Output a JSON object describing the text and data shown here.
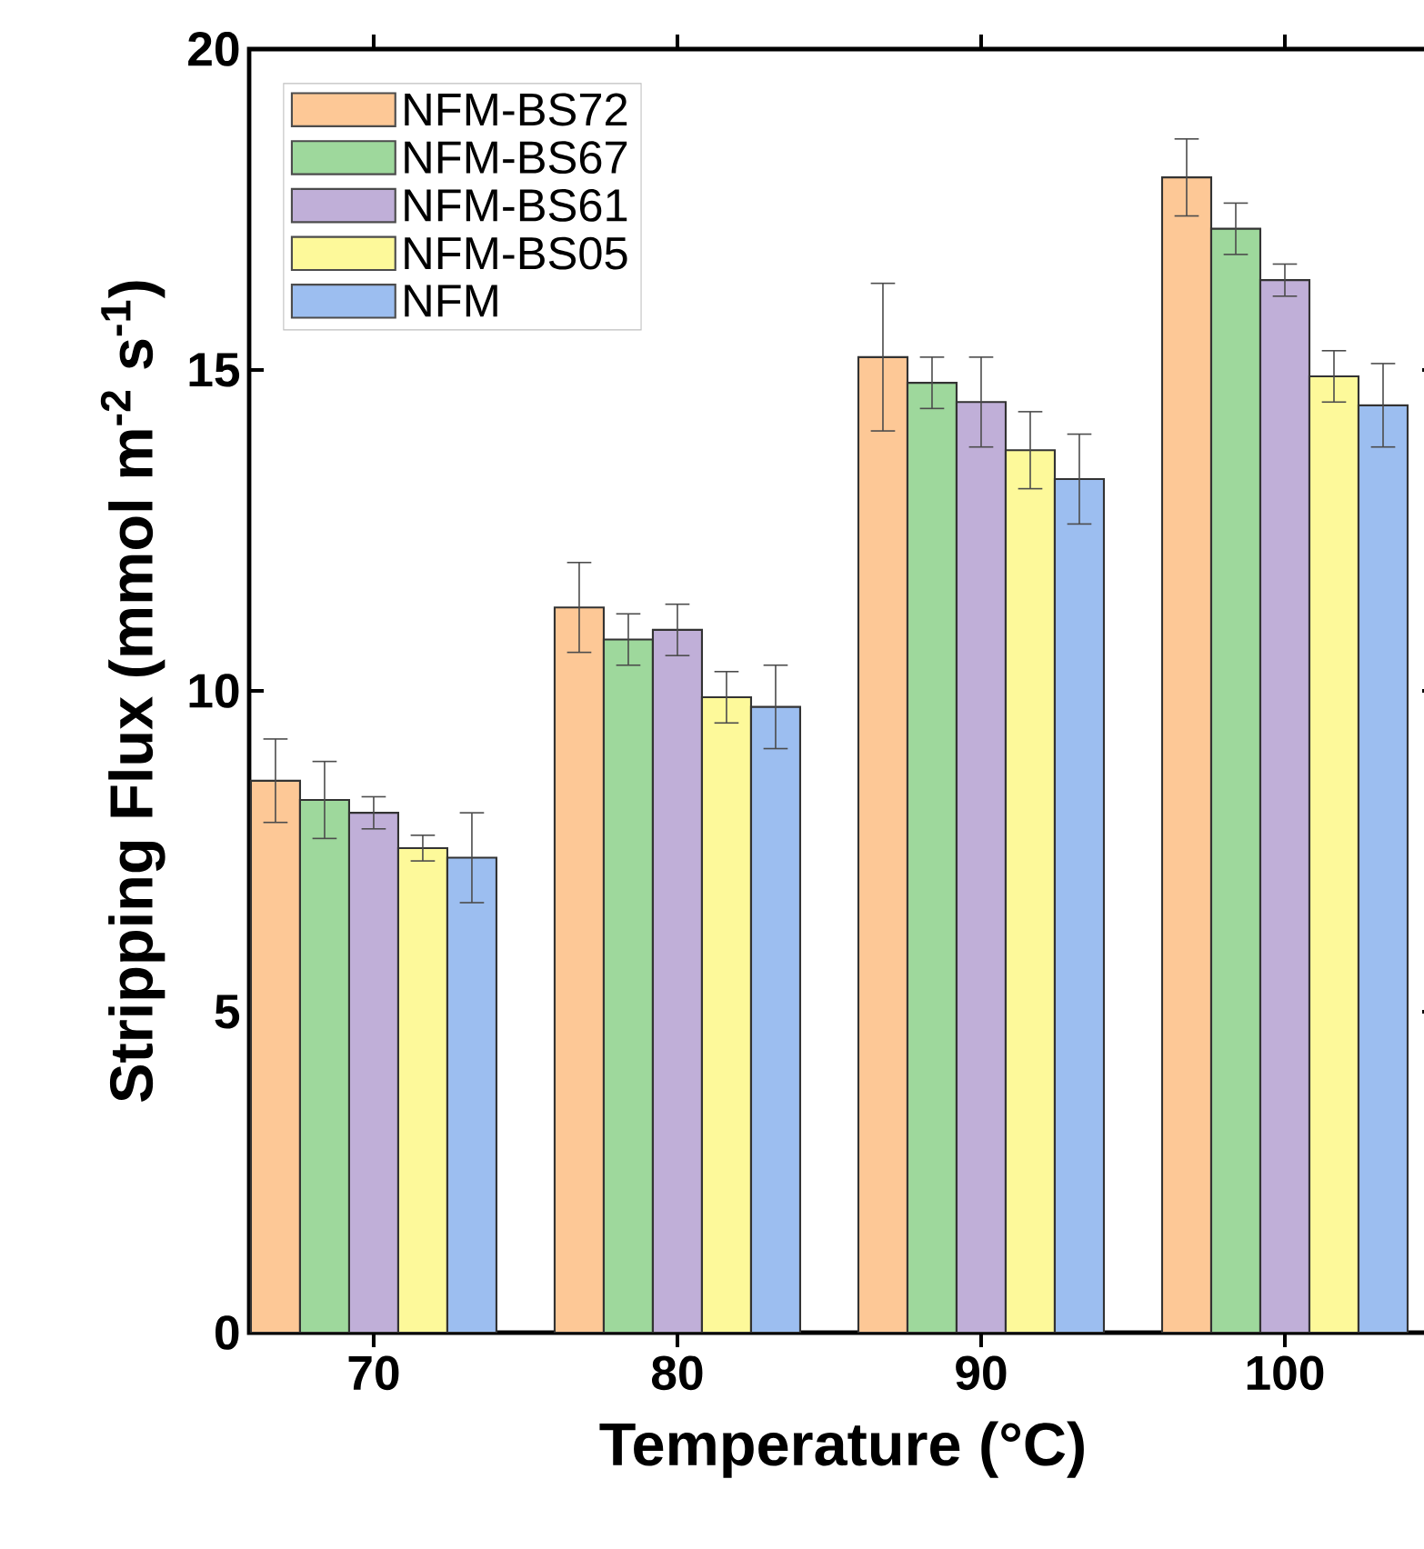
{
  "chart_data": {
    "type": "bar",
    "xlabel": "Temperature (°C)",
    "ylabel": "Stripping Flux (mmol m$^{-2}$ s$^{-1}$)",
    "categories": [
      "70",
      "80",
      "90",
      "100"
    ],
    "series": [
      {
        "name": "NFM-BS72",
        "color": "#fdc896",
        "values": [
          8.6,
          11.3,
          15.2,
          18.0
        ],
        "errors": [
          0.65,
          0.7,
          1.15,
          0.6
        ]
      },
      {
        "name": "NFM-BS67",
        "color": "#9ed89c",
        "values": [
          8.3,
          10.8,
          14.8,
          17.2
        ],
        "errors": [
          0.6,
          0.4,
          0.4,
          0.4
        ]
      },
      {
        "name": "NFM-BS61",
        "color": "#c0afd8",
        "values": [
          8.1,
          10.95,
          14.5,
          16.4
        ],
        "errors": [
          0.25,
          0.4,
          0.7,
          0.25
        ]
      },
      {
        "name": "NFM-BS05",
        "color": "#fdf99a",
        "values": [
          7.55,
          9.9,
          13.75,
          14.9
        ],
        "errors": [
          0.2,
          0.4,
          0.6,
          0.4
        ]
      },
      {
        "name": "NFM",
        "color": "#9cbef0",
        "values": [
          7.4,
          9.75,
          13.3,
          14.45
        ],
        "errors": [
          0.7,
          0.65,
          0.7,
          0.65
        ]
      }
    ],
    "ylim": [
      0,
      20
    ],
    "yticks": [
      0,
      5,
      10,
      15,
      20
    ],
    "legend": "top left",
    "grid": false
  }
}
